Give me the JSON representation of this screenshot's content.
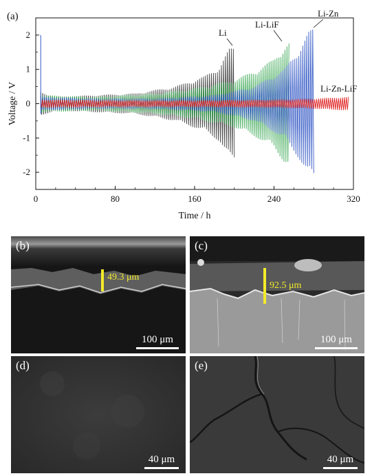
{
  "figure": {
    "panel_a_tag": "(a)",
    "panels": [
      {
        "tag": "(b)",
        "scale_label": "100 μm",
        "thickness_label": "49.3 μm"
      },
      {
        "tag": "(c)",
        "scale_label": "100 μm",
        "thickness_label": "92.5 μm"
      },
      {
        "tag": "(d)",
        "scale_label": "40 μm"
      },
      {
        "tag": "(e)",
        "scale_label": "40 μm"
      }
    ]
  },
  "chart_data": {
    "type": "line",
    "xlabel": "Time / h",
    "ylabel": "Voltage / V",
    "xlim": [
      0,
      320
    ],
    "ylim": [
      -2.5,
      2.5
    ],
    "xticks": [
      0,
      80,
      160,
      240,
      320
    ],
    "yticks": [
      2,
      1,
      0,
      -1,
      -2
    ],
    "series": [
      {
        "name": "Li",
        "color": "#3a3a3a",
        "envelope_time_h": [
          5,
          20,
          60,
          100,
          140,
          170,
          185,
          195,
          200
        ],
        "envelope_voltage_V": [
          0.35,
          0.2,
          0.25,
          0.3,
          0.5,
          0.8,
          1.1,
          1.6,
          1.65
        ]
      },
      {
        "name": "Li-LiF",
        "color": "#2ea24a",
        "envelope_time_h": [
          5,
          60,
          120,
          160,
          200,
          220,
          240,
          250,
          255
        ],
        "envelope_voltage_V": [
          0.25,
          0.2,
          0.3,
          0.45,
          0.7,
          0.95,
          1.3,
          1.7,
          1.8
        ]
      },
      {
        "name": "Li-Zn",
        "color": "#2f55c4",
        "envelope_time_h": [
          5,
          60,
          120,
          180,
          220,
          250,
          265,
          275,
          280
        ],
        "envelope_voltage_V": [
          0.2,
          0.15,
          0.15,
          0.25,
          0.5,
          1.0,
          1.6,
          2.1,
          2.2
        ]
      },
      {
        "name": "Li-Zn-LiF",
        "color": "#e02626",
        "envelope_time_h": [
          5,
          80,
          160,
          240,
          280,
          300,
          315
        ],
        "envelope_voltage_V": [
          0.12,
          0.1,
          0.1,
          0.12,
          0.15,
          0.18,
          0.2
        ]
      }
    ]
  }
}
